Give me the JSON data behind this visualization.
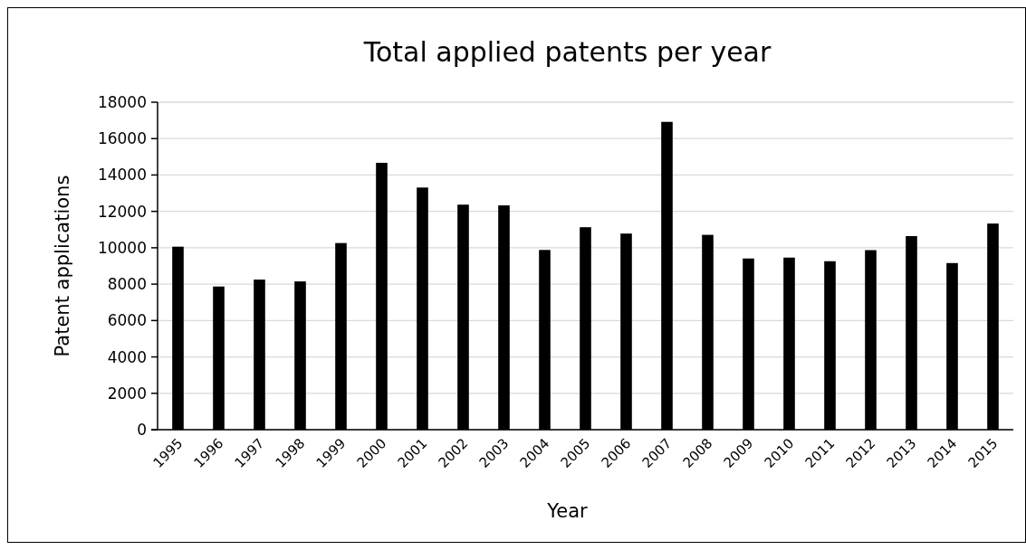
{
  "chart_data": {
    "type": "bar",
    "title": "Total applied patents per year",
    "xlabel": "Year",
    "ylabel": "Patent applications",
    "categories": [
      "1995",
      "1996",
      "1997",
      "1998",
      "1999",
      "2000",
      "2001",
      "2002",
      "2003",
      "2004",
      "2005",
      "2006",
      "2007",
      "2008",
      "2009",
      "2010",
      "2011",
      "2012",
      "2013",
      "2014",
      "2015"
    ],
    "values": [
      10060,
      7870,
      8250,
      8150,
      10260,
      14670,
      13310,
      12370,
      12330,
      9880,
      11130,
      10780,
      16920,
      10710,
      9410,
      9460,
      9260,
      9870,
      10640,
      9160,
      11330
    ],
    "color": "#000000",
    "ylim": [
      0,
      18000
    ],
    "yticks": [
      0,
      2000,
      4000,
      6000,
      8000,
      10000,
      12000,
      14000,
      16000,
      18000
    ],
    "grid": "y"
  }
}
